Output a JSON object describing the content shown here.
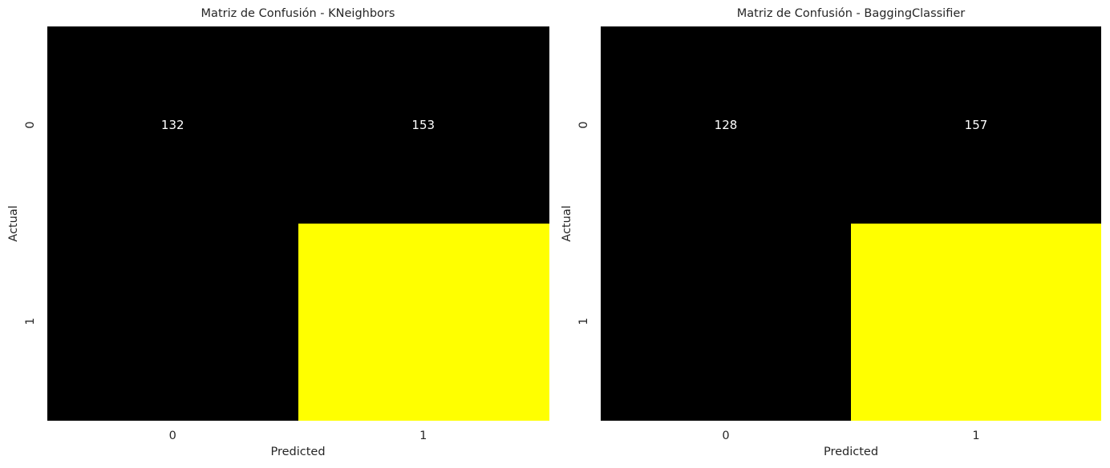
{
  "chart_data": [
    {
      "type": "heatmap",
      "title": "Matriz de Confusión - KNeighbors",
      "xlabel": "Predicted",
      "ylabel": "Actual",
      "x_ticks": [
        "0",
        "1"
      ],
      "y_ticks": [
        "0",
        "1"
      ],
      "values": [
        [
          132,
          153
        ],
        [
          null,
          null
        ]
      ],
      "cell_colors": [
        [
          "#000000",
          "#000000"
        ],
        [
          "#000000",
          "#ffff00"
        ]
      ],
      "colorbar": false,
      "grid": false
    },
    {
      "type": "heatmap",
      "title": "Matriz de Confusión - BaggingClassifier",
      "xlabel": "Predicted",
      "ylabel": "Actual",
      "x_ticks": [
        "0",
        "1"
      ],
      "y_ticks": [
        "0",
        "1"
      ],
      "values": [
        [
          128,
          157
        ],
        [
          null,
          null
        ]
      ],
      "cell_colors": [
        [
          "#000000",
          "#000000"
        ],
        [
          "#000000",
          "#ffff00"
        ]
      ],
      "colorbar": false,
      "grid": false
    }
  ],
  "annotation_color": "#ffffff"
}
